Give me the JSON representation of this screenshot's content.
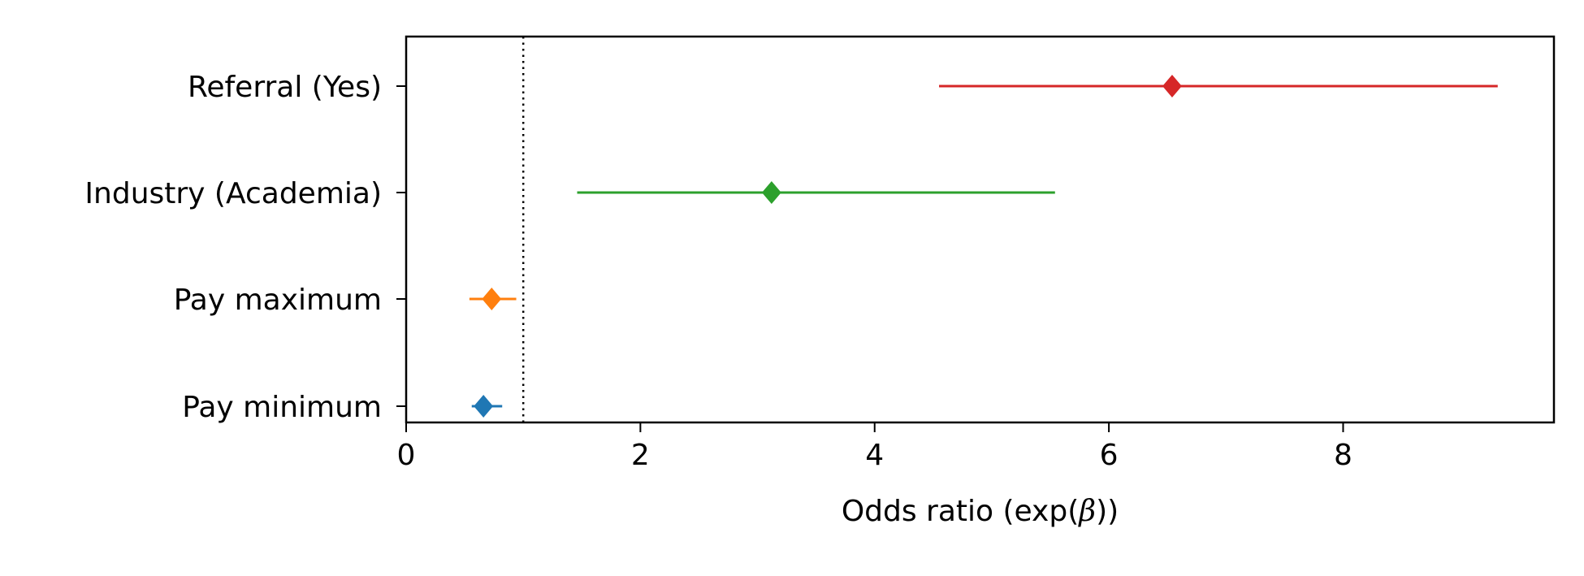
{
  "chart_data": {
    "type": "forest",
    "xlabel": "Odds ratio (exp(β))",
    "xlabel_parts": {
      "prefix": "Odds ratio (exp(",
      "symbol": "β",
      "suffix": "))"
    },
    "ylabel": "",
    "xlim": [
      0,
      9.8
    ],
    "xticks": [
      0,
      2,
      4,
      6,
      8
    ],
    "reference_line": {
      "x": 1,
      "style": "dotted",
      "color": "#000000"
    },
    "grid": false,
    "legend": "none",
    "series": [
      {
        "category": "Pay minimum",
        "estimate": 0.66,
        "ci_low": 0.56,
        "ci_high": 0.82,
        "color": "#1f77b4"
      },
      {
        "category": "Pay maximum",
        "estimate": 0.73,
        "ci_low": 0.54,
        "ci_high": 0.94,
        "color": "#ff7f0e"
      },
      {
        "category": "Industry (Academia)",
        "estimate": 3.12,
        "ci_low": 1.46,
        "ci_high": 5.54,
        "color": "#2ca02c"
      },
      {
        "category": "Referral (Yes)",
        "estimate": 6.54,
        "ci_low": 4.55,
        "ci_high": 9.32,
        "color": "#d62728"
      }
    ]
  }
}
